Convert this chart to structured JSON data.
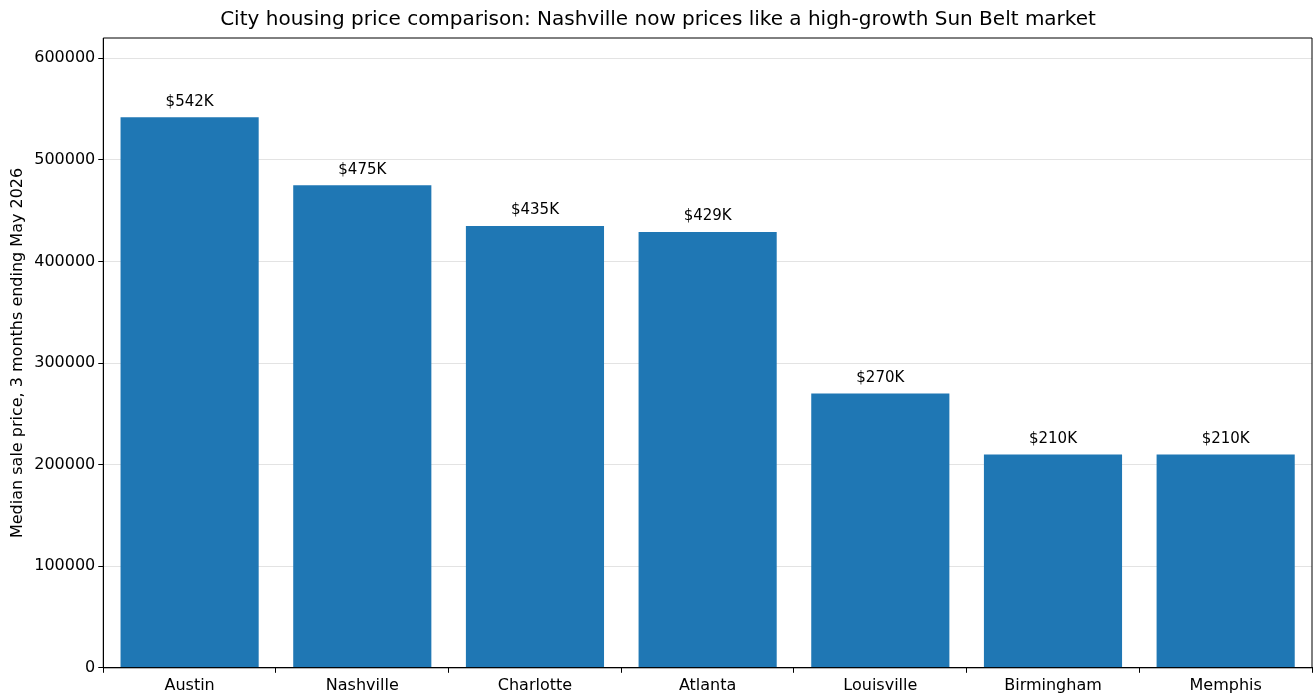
{
  "chart_data": {
    "type": "bar",
    "title": "City housing price comparison: Nashville now prices like a high-growth Sun Belt market",
    "ylabel": "Median sale price, 3 months ending May 2026",
    "categories": [
      "Austin",
      "Nashville",
      "Charlotte",
      "Atlanta",
      "Louisville",
      "Birmingham",
      "Memphis"
    ],
    "values": [
      542000,
      475000,
      435000,
      429000,
      270000,
      210000,
      210000
    ],
    "value_labels": [
      "$542K",
      "$475K",
      "$435K",
      "$429K",
      "$270K",
      "$210K",
      "$210K"
    ],
    "color": "#1f77b4",
    "ylim": [
      0,
      620000
    ],
    "yticks": [
      0,
      100000,
      200000,
      300000,
      400000,
      500000,
      600000
    ],
    "grid": "y"
  }
}
